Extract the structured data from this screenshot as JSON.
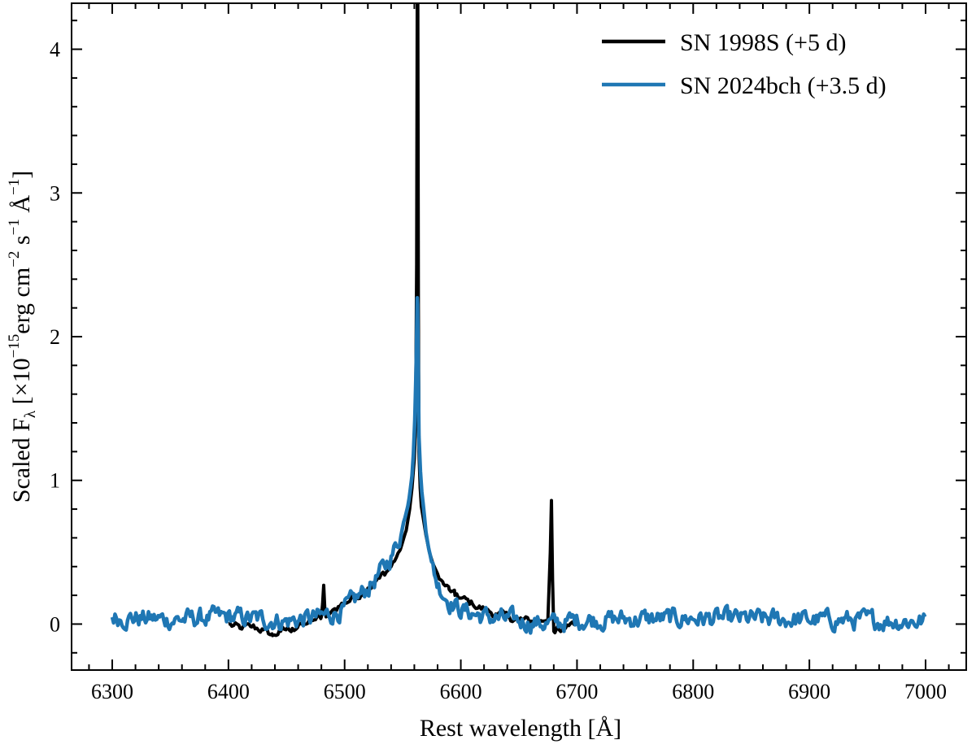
{
  "chart_data": {
    "type": "line",
    "title": "",
    "xlabel": "Rest wavelength [Å]",
    "ylabel": {
      "prefix": "Scaled F",
      "sub": "λ",
      "a": " [×10",
      "exp1": "−15",
      "b": "erg cm",
      "exp2": "−2",
      "c": " s",
      "exp3": "−1",
      "d": " Å",
      "exp4": "−1",
      "e": "]"
    },
    "xlim": [
      6265,
      7035
    ],
    "ylim": [
      -0.32,
      4.32
    ],
    "xticks_major": [
      6300,
      6400,
      6500,
      6600,
      6700,
      6800,
      6900,
      7000
    ],
    "xtick_labels": [
      "6300",
      "6400",
      "6500",
      "6600",
      "6700",
      "6800",
      "6900",
      "7000"
    ],
    "yticks_major": [
      0,
      1,
      2,
      3,
      4
    ],
    "ytick_labels": [
      "0",
      "1",
      "2",
      "3",
      "4"
    ],
    "grid": false,
    "legend_position": "top-right",
    "series": [
      {
        "name": "SN 1998S (+5 d)",
        "color": "#000000",
        "x": [
          6400,
          6410,
          6420,
          6430,
          6438,
          6445,
          6455,
          6465,
          6475,
          6480,
          6481,
          6482,
          6483,
          6484,
          6486,
          6490,
          6500,
          6510,
          6520,
          6530,
          6540,
          6548,
          6553,
          6556,
          6558,
          6560,
          6561,
          6562,
          6562.5,
          6563,
          6563.5,
          6564,
          6565,
          6566,
          6568,
          6570,
          6573,
          6576,
          6580,
          6585,
          6590,
          6595,
          6600,
          6610,
          6620,
          6630,
          6640,
          6650,
          6660,
          6670,
          6675,
          6677,
          6678,
          6679,
          6680,
          6681,
          6683,
          6690,
          6700
        ],
        "y": [
          0.0,
          -0.03,
          -0.02,
          -0.04,
          -0.08,
          -0.05,
          -0.03,
          0.0,
          0.03,
          0.05,
          0.14,
          0.27,
          0.1,
          0.05,
          0.06,
          0.1,
          0.15,
          0.19,
          0.25,
          0.32,
          0.4,
          0.52,
          0.65,
          0.8,
          0.95,
          1.15,
          1.35,
          2.5,
          4.32,
          4.32,
          2.2,
          1.2,
          0.95,
          0.82,
          0.72,
          0.62,
          0.5,
          0.42,
          0.35,
          0.28,
          0.24,
          0.2,
          0.18,
          0.14,
          0.1,
          0.07,
          0.05,
          0.03,
          0.02,
          0.02,
          0.04,
          0.5,
          0.86,
          0.3,
          -0.05,
          -0.06,
          -0.02,
          -0.03,
          0.0
        ]
      },
      {
        "name": "SN 2024bch (+3.5 d)",
        "color": "#1f77b4",
        "noise": 0.055,
        "x": [
          6300,
          6350,
          6400,
          6450,
          6480,
          6500,
          6520,
          6535,
          6545,
          6550,
          6555,
          6558,
          6560,
          6561,
          6562,
          6562.5,
          6563,
          6563.5,
          6564,
          6565,
          6566,
          6568,
          6570,
          6575,
          6580,
          6590,
          6600,
          6620,
          6650,
          6680,
          6700,
          6800,
          6900,
          7000
        ],
        "y": [
          0.05,
          0.03,
          0.05,
          0.02,
          0.05,
          0.1,
          0.25,
          0.4,
          0.55,
          0.68,
          0.85,
          1.05,
          1.3,
          1.6,
          1.95,
          2.27,
          2.2,
          1.7,
          1.3,
          1.1,
          0.95,
          0.8,
          0.65,
          0.42,
          0.28,
          0.16,
          0.1,
          0.05,
          0.02,
          0.0,
          0.03,
          0.04,
          0.03,
          0.02
        ]
      }
    ]
  }
}
